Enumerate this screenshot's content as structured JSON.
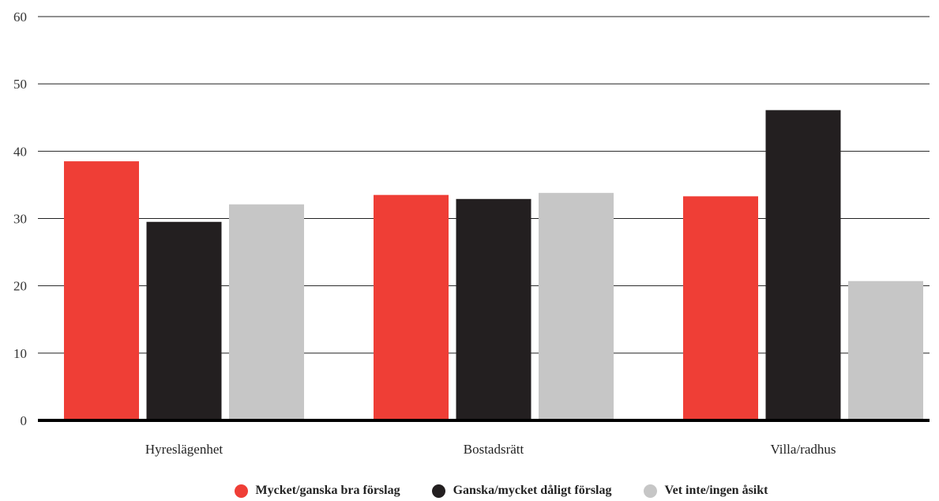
{
  "chart_data": {
    "type": "bar",
    "title": "",
    "xlabel": "",
    "ylabel": "",
    "ylim": [
      0,
      60
    ],
    "yticks": [
      0,
      10,
      20,
      30,
      40,
      50,
      60
    ],
    "grid": true,
    "legend_position": "bottom",
    "categories": [
      "Hyreslägenhet",
      "Bostadsrätt",
      "Villa/radhus"
    ],
    "series": [
      {
        "name": "Mycket/ganska bra förslag",
        "color": "#ef3e36",
        "values": [
          38.5,
          33.5,
          33.3
        ]
      },
      {
        "name": "Ganska/mycket dåligt förslag",
        "color": "#231f20",
        "values": [
          29.5,
          32.9,
          46.1
        ]
      },
      {
        "name": "Vet inte/ingen åsikt",
        "color": "#c6c6c6",
        "values": [
          32.1,
          33.8,
          20.7
        ]
      }
    ]
  }
}
